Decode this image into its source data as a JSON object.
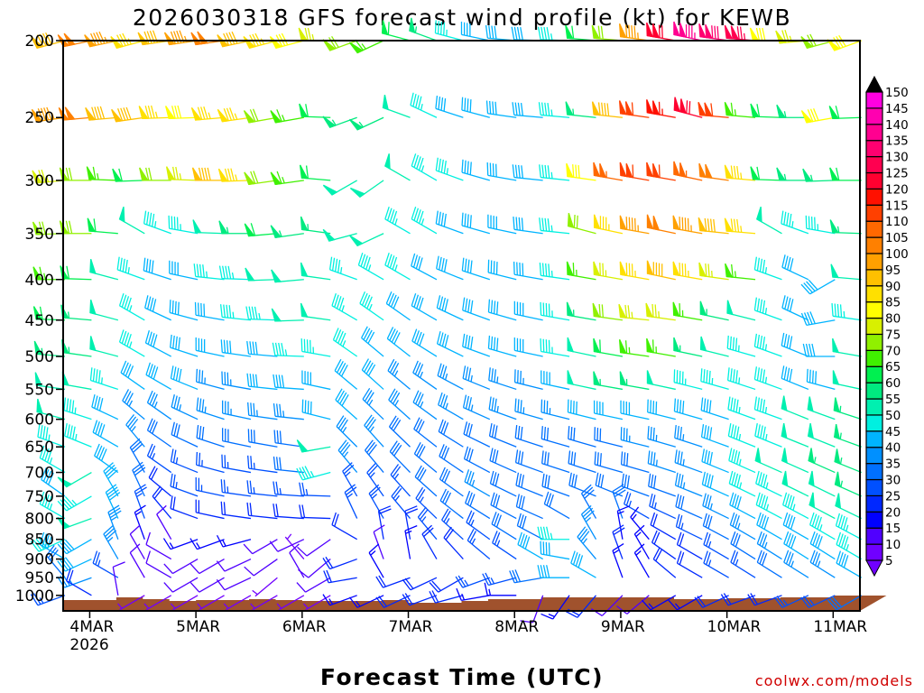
{
  "chart_data": {
    "type": "wind-barb-profile",
    "title": "2026030318 GFS forecast wind profile (kt) for KEWB",
    "xlabel": "Forecast Time (UTC)",
    "ylabel": "",
    "credit": "coolwx.com/models",
    "y_axis": {
      "scale": "log",
      "range": [
        200,
        1000
      ],
      "inverted": true,
      "ticks": [
        200,
        250,
        300,
        350,
        400,
        450,
        500,
        550,
        600,
        650,
        700,
        750,
        800,
        850,
        900,
        950,
        1000
      ]
    },
    "x_axis": {
      "start": "2026-03-03T18Z",
      "end": "2026-03-11T06Z",
      "step_hours": 6,
      "ticks": [
        {
          "label": "4MAR",
          "sub": "2026",
          "day": 1
        },
        {
          "label": "5MAR",
          "day": 2
        },
        {
          "label": "6MAR",
          "day": 3
        },
        {
          "label": "7MAR",
          "day": 4
        },
        {
          "label": "8MAR",
          "day": 5
        },
        {
          "label": "9MAR",
          "day": 6
        },
        {
          "label": "10MAR",
          "day": 7
        },
        {
          "label": "11MAR",
          "day": 8
        }
      ]
    },
    "colorbar": {
      "labels": [
        "150",
        "145",
        "140",
        "135",
        "130",
        "125",
        "120",
        "115",
        "110",
        "105",
        "100",
        "95",
        "90",
        "85",
        "80",
        "75",
        "70",
        "65",
        "60",
        "55",
        "50",
        "45",
        "40",
        "35",
        "30",
        "25",
        "20",
        "15",
        "10",
        "5"
      ],
      "colors": [
        "#7000ff",
        "#5000ff",
        "#0000ff",
        "#0028ff",
        "#0050ff",
        "#0070ff",
        "#0090ff",
        "#00b4ff",
        "#00f0e0",
        "#00f0b0",
        "#00ea80",
        "#00f050",
        "#40f000",
        "#90f000",
        "#d8f000",
        "#ffff00",
        "#ffe000",
        "#ffc000",
        "#ffa000",
        "#ff8000",
        "#ff6800",
        "#ff4000",
        "#ff1000",
        "#ff0030",
        "#ff0050",
        "#ff0070",
        "#ff0090",
        "#ff00b0",
        "#ff00e0"
      ],
      "over_color": "#000000",
      "under_color": "#7000ff"
    },
    "terrain_color": "#a0522d",
    "levels": [
      {
        "p": 200,
        "speed": [
          90,
          100,
          95,
          85,
          90,
          95,
          100,
          90,
          85,
          80,
          75,
          70,
          65,
          60,
          55,
          45,
          40,
          40,
          40,
          45,
          60,
          70,
          95,
          120,
          135,
          130,
          125,
          80,
          75,
          70,
          80
        ],
        "dir": [
          255,
          258,
          258,
          255,
          262,
          262,
          262,
          258,
          255,
          255,
          270,
          250,
          245,
          285,
          290,
          285,
          282,
          275,
          272,
          272,
          275,
          275,
          278,
          280,
          282,
          278,
          275,
          270,
          265,
          255,
          250
        ]
      },
      {
        "p": 250,
        "speed": [
          95,
          100,
          90,
          90,
          85,
          80,
          85,
          85,
          70,
          65,
          60,
          55,
          55,
          50,
          45,
          40,
          40,
          40,
          40,
          45,
          55,
          90,
          110,
          115,
          120,
          110,
          65,
          60,
          55,
          80,
          60
        ],
        "dir": [
          262,
          265,
          265,
          262,
          268,
          268,
          265,
          262,
          260,
          260,
          272,
          250,
          245,
          290,
          295,
          288,
          285,
          278,
          275,
          275,
          276,
          276,
          278,
          280,
          285,
          275,
          275,
          272,
          270,
          260,
          268
        ]
      },
      {
        "p": 300,
        "speed": [
          75,
          70,
          65,
          60,
          70,
          75,
          90,
          85,
          70,
          65,
          60,
          50,
          50,
          50,
          45,
          45,
          40,
          40,
          40,
          45,
          80,
          105,
          110,
          110,
          105,
          100,
          85,
          60,
          55,
          55,
          60
        ],
        "dir": [
          265,
          270,
          272,
          268,
          270,
          272,
          270,
          268,
          262,
          262,
          275,
          240,
          235,
          300,
          300,
          290,
          286,
          280,
          276,
          276,
          278,
          280,
          280,
          280,
          282,
          278,
          275,
          272,
          270,
          268,
          270
        ]
      },
      {
        "p": 350,
        "speed": [
          70,
          70,
          60,
          50,
          45,
          45,
          50,
          55,
          60,
          55,
          55,
          50,
          50,
          45,
          45,
          40,
          40,
          40,
          40,
          45,
          70,
          85,
          95,
          100,
          95,
          90,
          85,
          50,
          45,
          45,
          55
        ],
        "dir": [
          268,
          270,
          275,
          300,
          290,
          280,
          272,
          270,
          265,
          262,
          278,
          255,
          245,
          300,
          300,
          290,
          286,
          282,
          278,
          276,
          285,
          282,
          280,
          282,
          280,
          276,
          275,
          300,
          290,
          280,
          272
        ]
      },
      {
        "p": 400,
        "speed": [
          65,
          60,
          50,
          45,
          40,
          40,
          45,
          45,
          50,
          50,
          50,
          45,
          45,
          45,
          40,
          40,
          40,
          40,
          40,
          45,
          65,
          75,
          85,
          90,
          85,
          75,
          65,
          45,
          40,
          40,
          50
        ],
        "dir": [
          270,
          272,
          285,
          290,
          288,
          282,
          276,
          272,
          268,
          265,
          278,
          290,
          300,
          300,
          298,
          292,
          288,
          284,
          280,
          278,
          280,
          280,
          280,
          282,
          280,
          278,
          276,
          290,
          295,
          240,
          275
        ]
      },
      {
        "p": 450,
        "speed": [
          60,
          55,
          50,
          45,
          40,
          40,
          40,
          45,
          45,
          50,
          50,
          45,
          45,
          40,
          40,
          40,
          40,
          40,
          40,
          45,
          55,
          70,
          75,
          75,
          65,
          55,
          50,
          45,
          40,
          40,
          45
        ],
        "dir": [
          272,
          275,
          285,
          300,
          295,
          285,
          280,
          276,
          272,
          268,
          278,
          300,
          305,
          305,
          300,
          295,
          290,
          286,
          282,
          280,
          280,
          278,
          276,
          278,
          280,
          282,
          284,
          290,
          295,
          260,
          278
        ]
      },
      {
        "p": 500,
        "speed": [
          55,
          55,
          50,
          45,
          40,
          40,
          40,
          40,
          40,
          45,
          45,
          45,
          40,
          40,
          40,
          40,
          40,
          40,
          40,
          45,
          50,
          60,
          65,
          65,
          55,
          50,
          45,
          45,
          40,
          40,
          50
        ],
        "dir": [
          275,
          278,
          285,
          300,
          298,
          288,
          282,
          278,
          275,
          272,
          280,
          305,
          310,
          308,
          302,
          296,
          290,
          286,
          282,
          280,
          282,
          280,
          278,
          280,
          282,
          284,
          286,
          290,
          292,
          270,
          280
        ]
      },
      {
        "p": 550,
        "speed": [
          50,
          50,
          45,
          40,
          40,
          40,
          35,
          35,
          40,
          40,
          40,
          40,
          40,
          35,
          35,
          35,
          35,
          35,
          35,
          40,
          50,
          55,
          55,
          50,
          45,
          45,
          45,
          45,
          40,
          40,
          50
        ],
        "dir": [
          278,
          280,
          288,
          305,
          300,
          292,
          285,
          280,
          276,
          274,
          282,
          310,
          312,
          310,
          305,
          298,
          292,
          288,
          284,
          282,
          282,
          280,
          280,
          282,
          284,
          286,
          288,
          290,
          292,
          285,
          282
        ]
      },
      {
        "p": 600,
        "speed": [
          50,
          45,
          40,
          35,
          35,
          35,
          35,
          35,
          35,
          35,
          40,
          40,
          35,
          35,
          35,
          35,
          35,
          35,
          35,
          35,
          40,
          40,
          40,
          40,
          40,
          40,
          45,
          45,
          50,
          50,
          55
        ],
        "dir": [
          285,
          288,
          295,
          310,
          305,
          295,
          288,
          282,
          278,
          276,
          284,
          312,
          314,
          312,
          306,
          300,
          294,
          290,
          286,
          284,
          284,
          282,
          282,
          284,
          286,
          288,
          290,
          290,
          292,
          290,
          288
        ]
      },
      {
        "p": 650,
        "speed": [
          45,
          45,
          40,
          35,
          30,
          30,
          30,
          30,
          30,
          30,
          50,
          35,
          35,
          30,
          30,
          30,
          30,
          30,
          30,
          30,
          30,
          30,
          35,
          35,
          35,
          40,
          45,
          45,
          50,
          50,
          55
        ],
        "dir": [
          290,
          292,
          300,
          320,
          305,
          295,
          288,
          282,
          280,
          278,
          260,
          315,
          318,
          314,
          308,
          302,
          296,
          292,
          288,
          286,
          286,
          284,
          284,
          286,
          288,
          290,
          292,
          292,
          292,
          292,
          290
        ]
      },
      {
        "p": 700,
        "speed": [
          45,
          50,
          40,
          30,
          25,
          25,
          25,
          25,
          25,
          30,
          45,
          35,
          30,
          30,
          30,
          30,
          30,
          30,
          30,
          30,
          30,
          30,
          30,
          35,
          35,
          40,
          45,
          50,
          50,
          55,
          55
        ],
        "dir": [
          300,
          240,
          305,
          330,
          305,
          292,
          285,
          280,
          278,
          276,
          255,
          320,
          320,
          316,
          310,
          304,
          298,
          294,
          290,
          288,
          288,
          286,
          286,
          288,
          290,
          292,
          294,
          294,
          294,
          294,
          292
        ]
      },
      {
        "p": 750,
        "speed": [
          40,
          45,
          40,
          30,
          20,
          25,
          25,
          25,
          25,
          25,
          25,
          25,
          25,
          25,
          30,
          30,
          35,
          30,
          30,
          30,
          30,
          30,
          30,
          30,
          35,
          40,
          45,
          45,
          50,
          50,
          55
        ],
        "dir": [
          305,
          240,
          330,
          335,
          310,
          290,
          282,
          278,
          276,
          274,
          272,
          330,
          325,
          318,
          312,
          306,
          300,
          296,
          292,
          290,
          292,
          292,
          290,
          290,
          292,
          294,
          296,
          296,
          296,
          296,
          294
        ]
      },
      {
        "p": 800,
        "speed": [
          45,
          50,
          40,
          25,
          20,
          20,
          20,
          20,
          20,
          20,
          20,
          25,
          25,
          25,
          25,
          30,
          30,
          30,
          30,
          30,
          30,
          30,
          25,
          25,
          30,
          35,
          40,
          45,
          45,
          50,
          50
        ],
        "dir": [
          300,
          250,
          335,
          340,
          320,
          290,
          282,
          278,
          276,
          274,
          272,
          335,
          330,
          320,
          314,
          308,
          302,
          298,
          294,
          300,
          330,
          340,
          300,
          295,
          294,
          296,
          298,
          298,
          298,
          298,
          296
        ]
      },
      {
        "p": 850,
        "speed": [
          45,
          40,
          35,
          15,
          10,
          15,
          15,
          15,
          10,
          10,
          10,
          20,
          20,
          20,
          25,
          25,
          25,
          30,
          30,
          45,
          35,
          15,
          15,
          20,
          25,
          30,
          35,
          40,
          40,
          45,
          45
        ],
        "dir": [
          245,
          240,
          340,
          340,
          330,
          250,
          250,
          255,
          240,
          245,
          235,
          300,
          350,
          350,
          320,
          312,
          306,
          302,
          298,
          270,
          330,
          350,
          320,
          300,
          296,
          298,
          300,
          300,
          300,
          300,
          298
        ]
      },
      {
        "p": 900,
        "speed": [
          40,
          40,
          35,
          10,
          10,
          10,
          10,
          10,
          10,
          5,
          10,
          20,
          10,
          15,
          20,
          20,
          25,
          25,
          40,
          40,
          35,
          20,
          15,
          20,
          20,
          25,
          30,
          35,
          40,
          40,
          45
        ],
        "dir": [
          300,
          245,
          330,
          330,
          300,
          240,
          240,
          245,
          235,
          320,
          230,
          250,
          340,
          350,
          330,
          318,
          310,
          304,
          300,
          280,
          320,
          340,
          330,
          305,
          300,
          300,
          302,
          302,
          302,
          302,
          300
        ]
      },
      {
        "p": 950,
        "speed": [
          30,
          35,
          25,
          10,
          10,
          10,
          10,
          10,
          5,
          10,
          10,
          20,
          15,
          20,
          20,
          20,
          25,
          25,
          30,
          40,
          40,
          15,
          15,
          20,
          20,
          25,
          25,
          30,
          35,
          35,
          40
        ],
        "dir": [
          320,
          250,
          300,
          330,
          300,
          240,
          240,
          245,
          230,
          330,
          240,
          260,
          330,
          250,
          245,
          240,
          250,
          255,
          260,
          270,
          300,
          340,
          330,
          310,
          300,
          300,
          302,
          302,
          302,
          302,
          300
        ]
      },
      {
        "p": 1000,
        "speed": [
          25,
          20,
          10,
          5,
          5,
          5,
          5,
          5,
          5,
          5,
          5,
          15,
          15,
          20,
          20,
          20,
          15,
          15,
          10,
          15,
          20,
          10,
          10,
          15,
          15,
          20,
          20,
          20,
          25,
          25,
          30
        ],
        "dir": [
          250,
          300,
          350,
          240,
          240,
          240,
          240,
          240,
          240,
          240,
          240,
          250,
          245,
          245,
          250,
          255,
          260,
          270,
          200,
          215,
          220,
          225,
          230,
          240,
          240,
          245,
          250,
          250,
          245,
          245,
          240
        ]
      }
    ]
  }
}
